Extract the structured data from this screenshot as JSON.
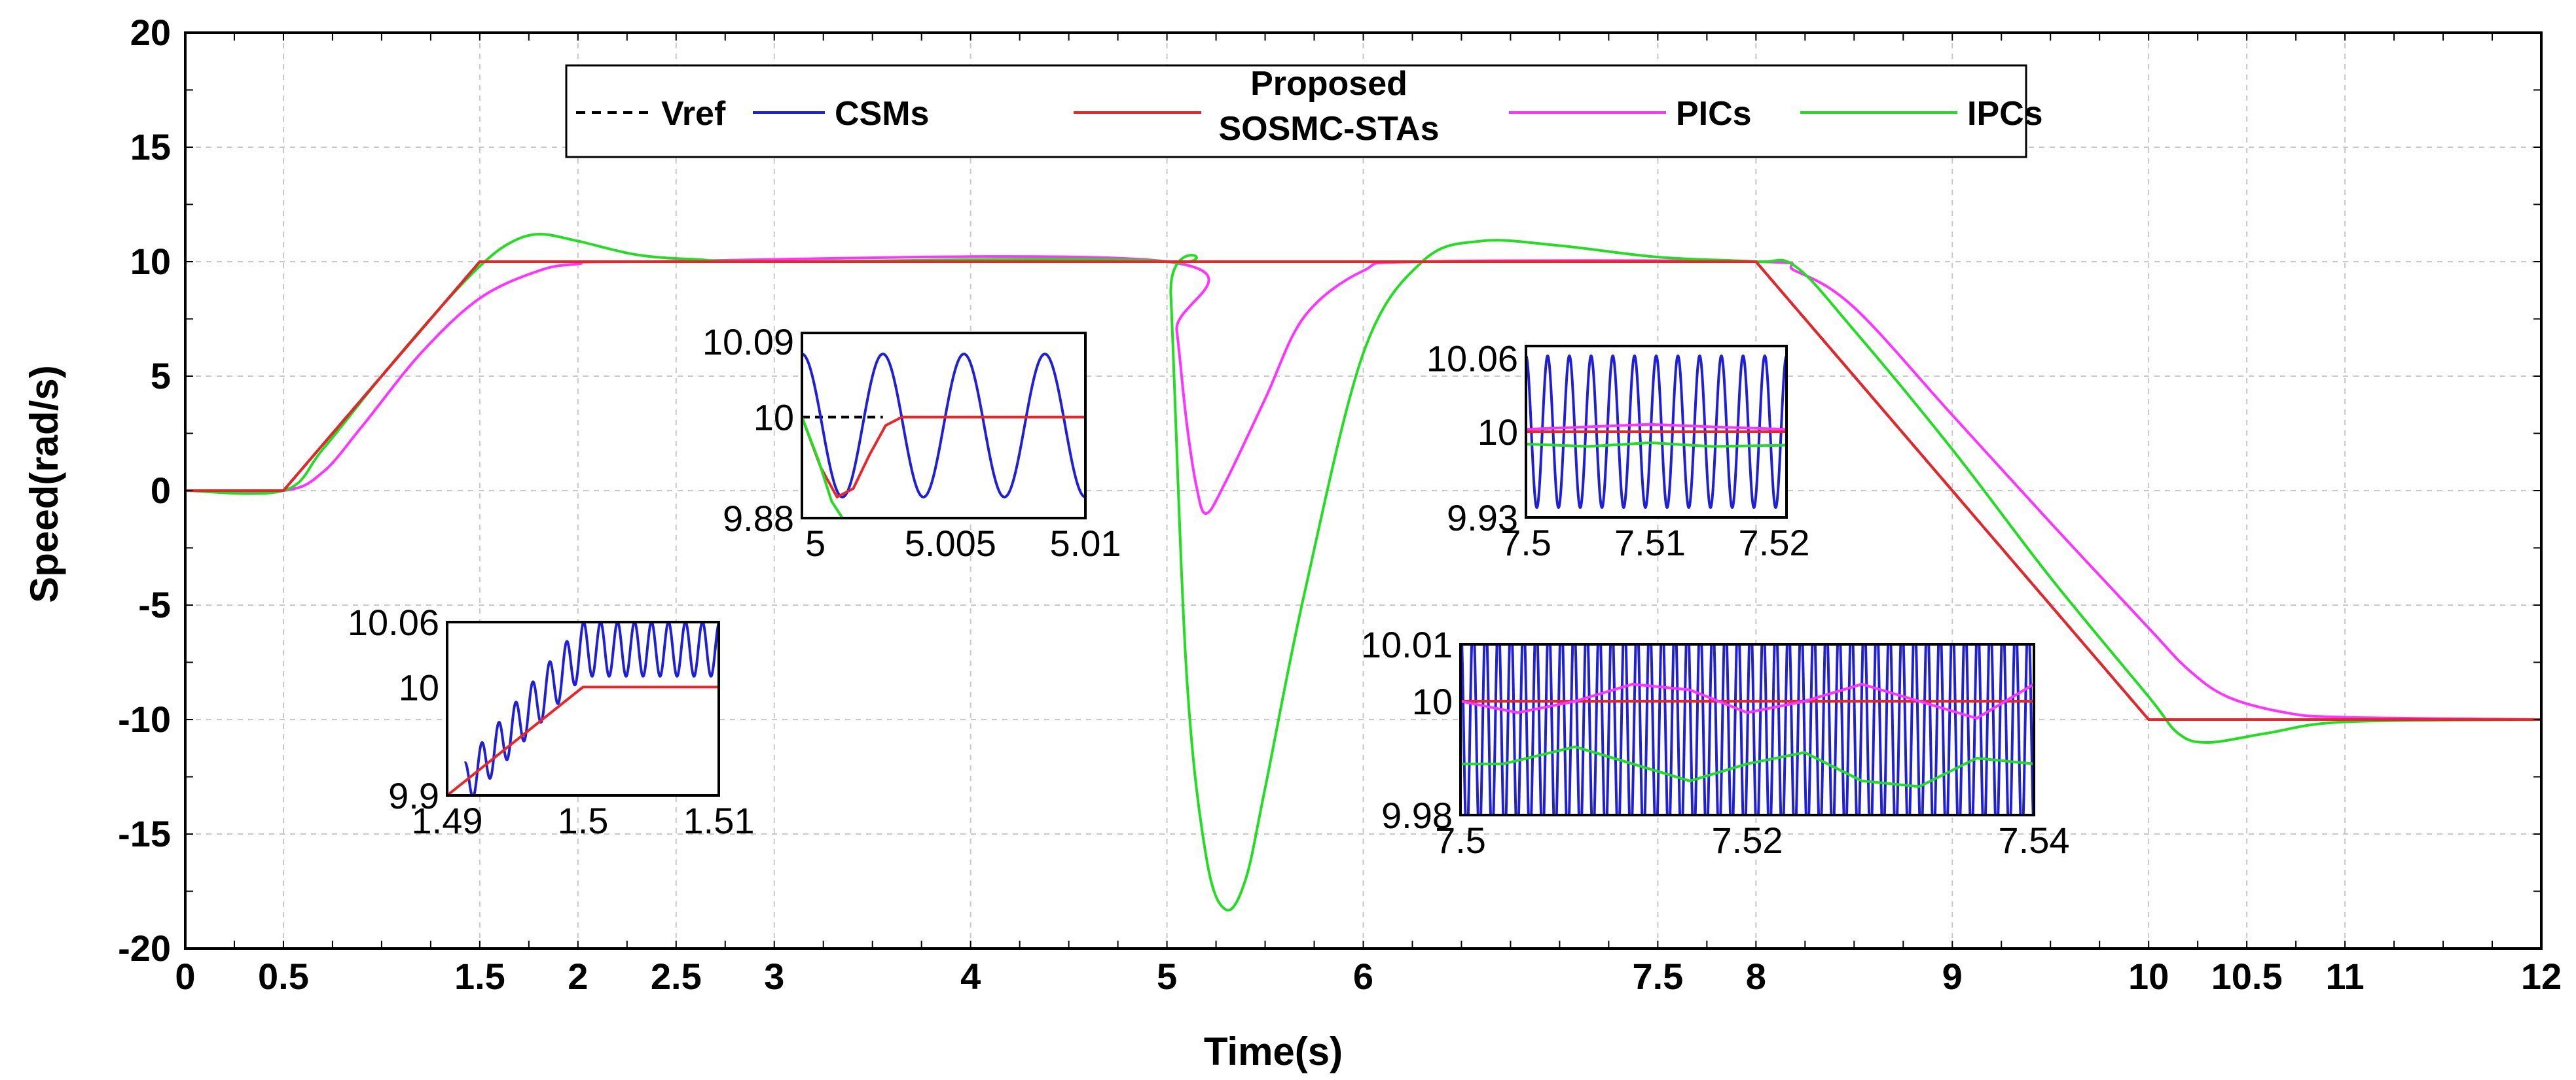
{
  "chart_data": {
    "type": "line",
    "title": "",
    "xlabel": "Time(s)",
    "ylabel": "Speed(rad/s)",
    "xlim": [
      0,
      12
    ],
    "ylim": [
      -20,
      20
    ],
    "grid": true,
    "x_ticks": [
      "0",
      "0.5",
      "1.5",
      "2",
      "2.5",
      "3",
      "4",
      "5",
      "6",
      "7.5",
      "8",
      "9",
      "10",
      "10.5",
      "11",
      "12"
    ],
    "x_tick_values": [
      0,
      0.5,
      1.5,
      2,
      2.5,
      3,
      4,
      5,
      6,
      7.5,
      8,
      9,
      10,
      10.5,
      11,
      12
    ],
    "y_ticks": [
      "20",
      "15",
      "10",
      "5",
      "0",
      "-5",
      "-10",
      "-15",
      "-20"
    ],
    "y_tick_values": [
      20,
      15,
      10,
      5,
      0,
      -5,
      -10,
      -15,
      -20
    ],
    "legend": {
      "placement": "top-center",
      "entries": [
        {
          "name": "Vref",
          "color": "#000000",
          "dash": true
        },
        {
          "name": "CSMs",
          "color": "#1f1fd6"
        },
        {
          "name": "Proposed SOSMC-STAs",
          "line1": "Proposed",
          "line2": "SOSMC-STAs",
          "color": "#e8262a"
        },
        {
          "name": "PICs",
          "color": "#ff33ff"
        },
        {
          "name": "IPCs",
          "color": "#22dd22"
        }
      ]
    },
    "series": [
      {
        "name": "Vref",
        "color": "#000000",
        "x": [
          0,
          0.5,
          1.5,
          8,
          10,
          12
        ],
        "y": [
          0,
          0,
          10,
          10,
          -10,
          -10
        ]
      },
      {
        "name": "CSMs",
        "color": "#1f1fd6",
        "x": [
          0,
          0.5,
          1.5,
          8,
          10,
          12
        ],
        "y": [
          0,
          0,
          10,
          10,
          -10,
          -10
        ]
      },
      {
        "name": "Proposed SOSMC-STAs",
        "color": "#e8262a",
        "x": [
          0,
          0.5,
          1.5,
          8,
          10,
          12
        ],
        "y": [
          0,
          0,
          10,
          10,
          -10,
          -10
        ]
      },
      {
        "name": "PICs",
        "color": "#ff33ff",
        "x": [
          0,
          0.5,
          0.7,
          0.9,
          1.2,
          1.5,
          1.8,
          2.0,
          2.3,
          5.0,
          5.05,
          5.1,
          5.15,
          5.2,
          5.3,
          5.5,
          5.7,
          6.0,
          6.3,
          8.0,
          8.2,
          8.5,
          9.0,
          9.5,
          10.0,
          10.2,
          10.4,
          10.7,
          11.0,
          12.0
        ],
        "y": [
          0,
          0,
          0.8,
          2.8,
          6.0,
          8.4,
          9.6,
          9.9,
          10,
          10,
          7.0,
          3.0,
          0.2,
          -1.0,
          0.4,
          4.0,
          7.6,
          9.6,
          10,
          10,
          9.6,
          8.0,
          3.3,
          -1.4,
          -6.0,
          -7.8,
          -9.0,
          -9.7,
          -9.9,
          -10
        ]
      },
      {
        "name": "IPCs",
        "color": "#22dd22",
        "x": [
          0,
          0.5,
          0.7,
          1.0,
          1.3,
          1.5,
          1.65,
          1.8,
          2.0,
          2.3,
          2.6,
          3.0,
          5.0,
          5.02,
          5.1,
          5.2,
          5.3,
          5.4,
          5.5,
          5.7,
          6.0,
          6.3,
          6.6,
          7.0,
          7.5,
          8.0,
          8.2,
          8.5,
          9.0,
          9.5,
          10.0,
          10.15,
          10.3,
          10.6,
          11.0,
          12.0
        ],
        "y": [
          0,
          0,
          1.8,
          5.0,
          8.0,
          9.8,
          10.8,
          11.2,
          10.9,
          10.3,
          10.1,
          10,
          10,
          8.5,
          -8.0,
          -16.0,
          -18.3,
          -17.0,
          -13.0,
          -4.5,
          6.0,
          10.0,
          10.9,
          10.7,
          10.2,
          10,
          9.8,
          7.0,
          1.8,
          -3.8,
          -9.0,
          -10.6,
          -11.0,
          -10.6,
          -10.1,
          -10
        ]
      }
    ],
    "insets": [
      {
        "name": "inset-1",
        "x_ticks": [
          "1.49",
          "1.5",
          "1.51"
        ],
        "x_tick_values": [
          1.49,
          1.5,
          1.51
        ],
        "y_ticks": [
          "10.06",
          "10",
          "9.9"
        ],
        "y_tick_values": [
          10.06,
          10,
          9.9
        ],
        "xlim": [
          1.49,
          1.51
        ],
        "ylim": [
          9.9,
          10.06
        ],
        "series": [
          {
            "name": "CSMs",
            "color": "#1f1fd6",
            "kind": "oscillation",
            "x0": 1.4913,
            "x1": 1.51,
            "center_start": 9.91,
            "center_end": 10.035,
            "amp_start": 0.02,
            "amp_end": 0.025,
            "period": 0.00125,
            "ramp_end": 1.5
          },
          {
            "name": "Proposed SOSMC-STAs",
            "color": "#e8262a",
            "x": [
              1.49,
              1.5,
              1.51
            ],
            "y": [
              9.9,
              10,
              10
            ]
          }
        ]
      },
      {
        "name": "inset-2",
        "x_ticks": [
          "5",
          "5.005",
          "5.01"
        ],
        "x_tick_values": [
          5,
          5.005,
          5.01
        ],
        "y_ticks": [
          "10.09",
          "10",
          "9.88"
        ],
        "y_tick_values": [
          10.09,
          10,
          9.88
        ],
        "xlim": [
          4.9995,
          5.01
        ],
        "ylim": [
          9.88,
          10.1
        ],
        "series": [
          {
            "name": "Vref",
            "color": "#000000",
            "dash": true,
            "x": [
              4.9995,
              5.0025
            ],
            "y": [
              10,
              10
            ]
          },
          {
            "name": "CSMs",
            "color": "#1f1fd6",
            "kind": "oscillation",
            "x0": 4.9995,
            "x1": 5.01,
            "center_start": 9.99,
            "center_end": 9.99,
            "amp_start": 0.085,
            "amp_end": 0.085,
            "period": 0.003,
            "ramp_end": 4.9995
          },
          {
            "name": "Proposed SOSMC-STAs",
            "color": "#e8262a",
            "x": [
              4.9995,
              5.0002,
              5.0008,
              5.0014,
              5.002,
              5.0026,
              5.0032,
              5.004,
              5.01
            ],
            "y": [
              10.0,
              9.94,
              9.905,
              9.915,
              9.955,
              9.99,
              10.0,
              10.0,
              10.0
            ]
          },
          {
            "name": "IPCs",
            "color": "#22dd22",
            "x": [
              4.9995,
              5.0001,
              5.0006,
              5.001
            ],
            "y": [
              10.0,
              9.95,
              9.9,
              9.88
            ]
          }
        ]
      },
      {
        "name": "inset-3",
        "x_ticks": [
          "7.5",
          "7.51",
          "7.52"
        ],
        "x_tick_values": [
          7.5,
          7.51,
          7.52
        ],
        "y_ticks": [
          "10.06",
          "10",
          "9.93"
        ],
        "y_tick_values": [
          10.06,
          10,
          9.93
        ],
        "xlim": [
          7.5,
          7.521
        ],
        "ylim": [
          9.93,
          10.07
        ],
        "series": [
          {
            "name": "CSMs",
            "color": "#1f1fd6",
            "kind": "oscillation",
            "x0": 7.5,
            "x1": 7.521,
            "center_start": 10.0,
            "center_end": 10.0,
            "amp_start": 0.062,
            "amp_end": 0.062,
            "period": 0.00175,
            "ramp_end": 7.5
          },
          {
            "name": "Proposed SOSMC-STAs",
            "color": "#e8262a",
            "x": [
              7.5,
              7.521
            ],
            "y": [
              10.0,
              10.0
            ]
          },
          {
            "name": "PICs",
            "color": "#ff33ff",
            "x": [
              7.5,
              7.505,
              7.51,
              7.515,
              7.521
            ],
            "y": [
              10.002,
              10.004,
              10.006,
              10.004,
              10.002
            ]
          },
          {
            "name": "IPCs",
            "color": "#22dd22",
            "x": [
              7.5,
              7.505,
              7.51,
              7.515,
              7.521
            ],
            "y": [
              9.99,
              9.988,
              9.991,
              9.988,
              9.989
            ]
          }
        ]
      },
      {
        "name": "inset-4",
        "x_ticks": [
          "7.5",
          "7.52",
          "7.54"
        ],
        "x_tick_values": [
          7.5,
          7.52,
          7.54
        ],
        "y_ticks": [
          "10.01",
          "10",
          "9.98"
        ],
        "y_tick_values": [
          10.01,
          10,
          9.98
        ],
        "xlim": [
          7.5,
          7.54
        ],
        "ylim": [
          9.98,
          10.01
        ],
        "series": [
          {
            "name": "CSMs",
            "color": "#1f1fd6",
            "kind": "oscillation",
            "x0": 7.5,
            "x1": 7.54,
            "center_start": 9.995,
            "center_end": 9.995,
            "amp_start": 0.02,
            "amp_end": 0.02,
            "period": 0.00088,
            "ramp_end": 7.5
          },
          {
            "name": "Proposed SOSMC-STAs",
            "color": "#e8262a",
            "x": [
              7.5,
              7.54
            ],
            "y": [
              10.0,
              10.0
            ]
          },
          {
            "name": "PICs",
            "color": "#ff33ff",
            "x": [
              7.5,
              7.504,
              7.508,
              7.512,
              7.516,
              7.52,
              7.524,
              7.528,
              7.532,
              7.536,
              7.54
            ],
            "y": [
              10.0,
              9.998,
              10.0,
              10.003,
              10.002,
              9.998,
              10.0,
              10.003,
              10.0,
              9.997,
              10.003
            ]
          },
          {
            "name": "IPCs",
            "color": "#22dd22",
            "x": [
              7.5,
              7.503,
              7.508,
              7.512,
              7.516,
              7.52,
              7.524,
              7.528,
              7.532,
              7.536,
              7.54
            ],
            "y": [
              9.989,
              9.989,
              9.992,
              9.989,
              9.986,
              9.989,
              9.991,
              9.986,
              9.985,
              9.99,
              9.989
            ]
          }
        ]
      }
    ]
  }
}
